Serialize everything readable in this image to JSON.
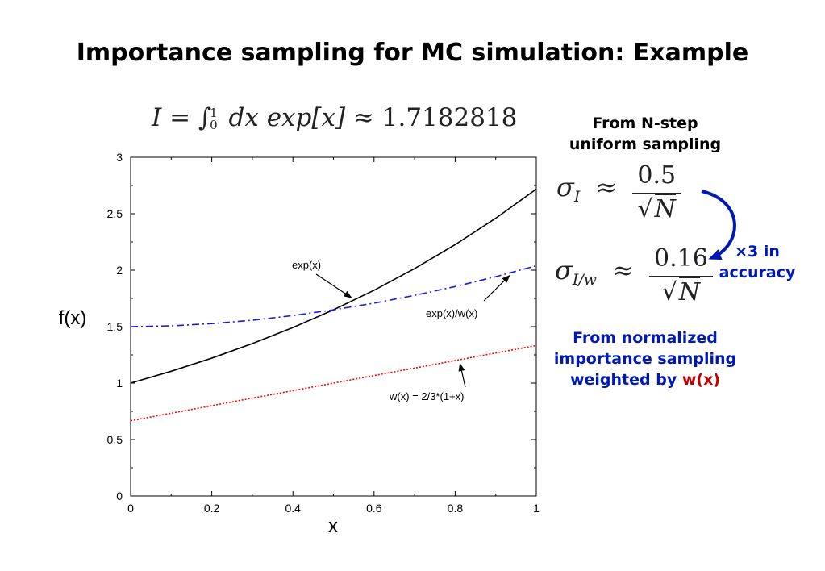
{
  "slide": {
    "title": "Importance sampling for MC simulation: Example",
    "integral": {
      "lhs": "I",
      "eq": "=",
      "int_sign": "∫",
      "upper_limit": "1",
      "lower_limit": "0",
      "integrand": "dx exp[x]",
      "approx": "≈",
      "value": "1.7182818"
    },
    "uniform_heading": [
      "From N-step",
      "uniform sampling"
    ],
    "sigma_uniform": {
      "sym": "σ",
      "sub": "I",
      "approx": "≈",
      "num": "0.5",
      "den_root": "√",
      "den_var": "N"
    },
    "sigma_importance": {
      "sym": "σ",
      "sub": "I/w",
      "approx": "≈",
      "num": "0.16",
      "den_root": "√",
      "den_var": "N"
    },
    "accuracy_note": [
      "×3 in",
      "accuracy"
    ],
    "importance_heading": [
      "From normalized",
      "importance sampling",
      "weighted by "
    ],
    "importance_heading_w": "w(x)",
    "colors": {
      "heading_blue": "#0019b3",
      "w_red": "#c00000",
      "arrow_blue": "#0019b3"
    }
  },
  "chart_data": {
    "type": "line",
    "xlabel": "x",
    "ylabel": "f(x)",
    "xlim": [
      0,
      1
    ],
    "ylim": [
      0,
      3
    ],
    "xticks": [
      0,
      0.2,
      0.4,
      0.6,
      0.8,
      1
    ],
    "xtick_labels": [
      "0",
      "0.2",
      "0.4",
      "0.6",
      "0.8",
      "1"
    ],
    "yticks": [
      0,
      0.5,
      1,
      1.5,
      2,
      2.5,
      3
    ],
    "ytick_labels": [
      "0",
      "0.5",
      "1",
      "1.5",
      "2",
      "2.5",
      "3"
    ],
    "grid": false,
    "x": [
      0,
      0.1,
      0.2,
      0.3,
      0.4,
      0.5,
      0.6,
      0.7,
      0.8,
      0.9,
      1.0
    ],
    "series": [
      {
        "name": "exp(x)",
        "color": "#000000",
        "dash": "solid",
        "values": [
          1.0,
          1.105,
          1.221,
          1.35,
          1.492,
          1.649,
          1.822,
          2.014,
          2.226,
          2.46,
          2.718
        ]
      },
      {
        "name": "exp(x)/w(x)",
        "color": "#1a1ae6",
        "dash": "dashdot",
        "values": [
          1.5,
          1.507,
          1.527,
          1.557,
          1.598,
          1.649,
          1.708,
          1.777,
          1.855,
          1.942,
          2.039
        ]
      },
      {
        "name": "w(x) = 2/3*(1+x)",
        "color": "#ff0000",
        "dash": "dotted",
        "values": [
          0.667,
          0.733,
          0.8,
          0.867,
          0.933,
          1.0,
          1.067,
          1.133,
          1.2,
          1.267,
          1.333
        ]
      }
    ],
    "annotations": [
      {
        "text": "exp(x)",
        "series": 0,
        "x": 0.55
      },
      {
        "text": "exp(x)/w(x)",
        "series": 1,
        "x": 0.94
      },
      {
        "text": "w(x) = 2/3*(1+x)",
        "series": 2,
        "x": 0.82
      }
    ]
  }
}
